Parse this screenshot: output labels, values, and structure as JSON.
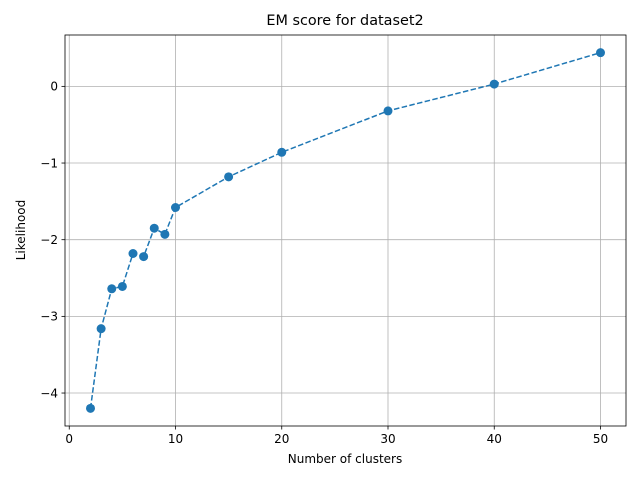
{
  "chart_data": {
    "type": "line",
    "title": "EM score for dataset2",
    "xlabel": "Number of clusters",
    "ylabel": "Likelihood",
    "xlim": [
      -0.4,
      52.4
    ],
    "ylim": [
      -4.43,
      0.67
    ],
    "xticks": [
      0,
      10,
      20,
      30,
      40,
      50
    ],
    "xtick_labels": [
      "0",
      "10",
      "20",
      "30",
      "40",
      "50"
    ],
    "yticks": [
      -4,
      -3,
      -2,
      -1,
      0
    ],
    "ytick_labels": [
      "−4",
      "−3",
      "−2",
      "−1",
      "0"
    ],
    "grid": true,
    "line_style": "dashed",
    "marker": "circle",
    "series_color": "#1f77b4",
    "series": [
      {
        "x": [
          2,
          3,
          4,
          5,
          6,
          7,
          8,
          9,
          10,
          15,
          20,
          30,
          40,
          50
        ],
        "values": [
          -4.2,
          -3.16,
          -2.64,
          -2.61,
          -2.18,
          -2.22,
          -1.85,
          -1.93,
          -1.58,
          -1.18,
          -0.86,
          -0.32,
          0.03,
          0.44
        ]
      }
    ]
  }
}
